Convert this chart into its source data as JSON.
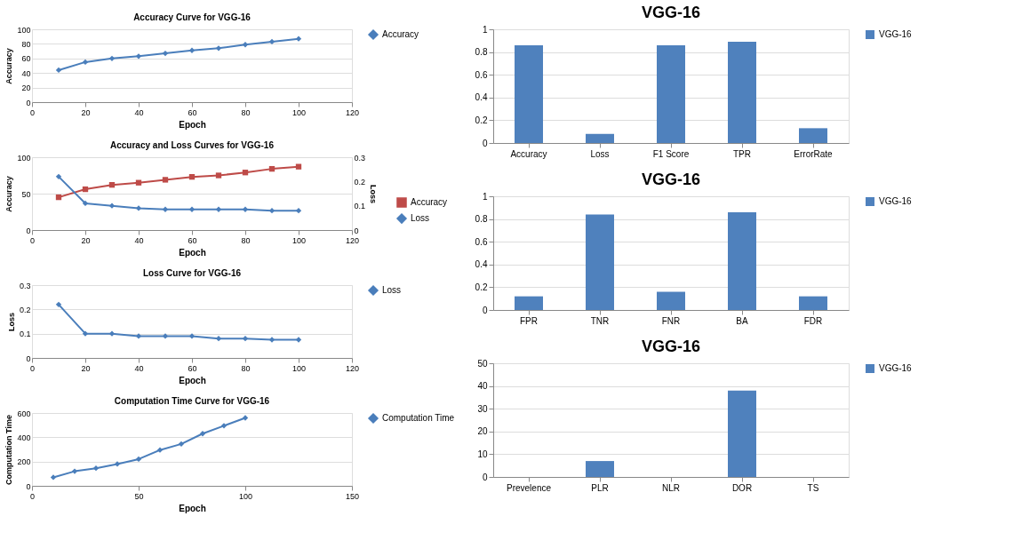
{
  "chart_data": [
    {
      "type": "line",
      "title": "Accuracy Curve for VGG-16",
      "xlabel": "Epoch",
      "ylabel": "Accuracy",
      "x": [
        10,
        20,
        30,
        40,
        50,
        60,
        70,
        80,
        90,
        100
      ],
      "series": [
        {
          "name": "Accuracy",
          "color": "#4a7ebb",
          "marker": "diamond",
          "values": [
            44,
            55,
            60,
            63,
            67,
            71,
            74,
            79,
            83,
            87
          ]
        }
      ],
      "xlim": [
        0,
        120
      ],
      "xticks": [
        0,
        20,
        40,
        60,
        80,
        100,
        120
      ],
      "ylim": [
        0,
        100
      ],
      "yticks": [
        0,
        20,
        40,
        60,
        80,
        100
      ],
      "grid": "y",
      "legend": "right"
    },
    {
      "type": "line",
      "title": "Accuracy and Loss Curves for VGG-16",
      "xlabel": "Epoch",
      "ylabel": "Accuracy",
      "y2label": "Loss",
      "x": [
        10,
        20,
        30,
        40,
        50,
        60,
        70,
        80,
        90,
        100
      ],
      "series": [
        {
          "name": "Accuracy",
          "color": "#be4b48",
          "marker": "square",
          "values": [
            45,
            56,
            62,
            65,
            69,
            73,
            75,
            79,
            84,
            87
          ]
        },
        {
          "name": "Loss",
          "color": "#4a7ebb",
          "marker": "diamond",
          "axis": "y2",
          "values": [
            0.22,
            0.11,
            0.1,
            0.09,
            0.085,
            0.085,
            0.085,
            0.085,
            0.08,
            0.08
          ]
        }
      ],
      "xlim": [
        0,
        120
      ],
      "xticks": [
        0,
        20,
        40,
        60,
        80,
        100,
        120
      ],
      "ylim": [
        0,
        100
      ],
      "yticks": [
        0,
        50,
        100
      ],
      "y2lim": [
        0,
        0.3
      ],
      "y2ticks": [
        0,
        0.1,
        0.2,
        0.3
      ],
      "grid": "y",
      "legend": "bottom right"
    },
    {
      "type": "line",
      "title": "Loss Curve for VGG-16",
      "xlabel": "Epoch",
      "ylabel": "Loss",
      "x": [
        10,
        20,
        30,
        40,
        50,
        60,
        70,
        80,
        90,
        100
      ],
      "series": [
        {
          "name": "Loss",
          "color": "#4a7ebb",
          "marker": "diamond",
          "values": [
            0.22,
            0.1,
            0.1,
            0.09,
            0.09,
            0.09,
            0.08,
            0.08,
            0.075,
            0.075
          ]
        }
      ],
      "xlim": [
        0,
        120
      ],
      "xticks": [
        0,
        20,
        40,
        60,
        80,
        100,
        120
      ],
      "ylim": [
        0,
        0.3
      ],
      "yticks": [
        0,
        0.1,
        0.2,
        0.3
      ],
      "grid": "y",
      "legend": "right"
    },
    {
      "type": "line",
      "title": "Computation Time Curve for VGG-16",
      "xlabel": "Epoch",
      "ylabel": "Computation Time",
      "x": [
        10,
        20,
        30,
        40,
        50,
        60,
        70,
        80,
        90,
        100
      ],
      "series": [
        {
          "name": "Computation Time",
          "color": "#4a7ebb",
          "marker": "diamond",
          "values": [
            70,
            120,
            145,
            180,
            220,
            295,
            345,
            430,
            495,
            560
          ]
        }
      ],
      "xlim": [
        0,
        150
      ],
      "xticks": [
        0,
        50,
        100,
        150
      ],
      "ylim": [
        0,
        600
      ],
      "yticks": [
        0,
        200,
        400,
        600
      ],
      "grid": "y",
      "legend": "right"
    },
    {
      "type": "bar",
      "title": "VGG-16",
      "categories": [
        "Accuracy",
        "Loss",
        "F1 Score",
        "TPR",
        "ErrorRate"
      ],
      "series": [
        {
          "name": "VGG-16",
          "color": "#4f81bd",
          "values": [
            0.86,
            0.08,
            0.86,
            0.89,
            0.13
          ]
        }
      ],
      "ylim": [
        0,
        1
      ],
      "yticks": [
        0,
        0.2,
        0.4,
        0.6,
        0.8,
        1
      ],
      "grid": "y",
      "legend": "right"
    },
    {
      "type": "bar",
      "title": "VGG-16",
      "categories": [
        "FPR",
        "TNR",
        "FNR",
        "BA",
        "FDR"
      ],
      "series": [
        {
          "name": "VGG-16",
          "color": "#4f81bd",
          "values": [
            0.12,
            0.84,
            0.16,
            0.86,
            0.12
          ]
        }
      ],
      "ylim": [
        0,
        1
      ],
      "yticks": [
        0,
        0.2,
        0.4,
        0.6,
        0.8,
        1
      ],
      "grid": "y",
      "legend": "right"
    },
    {
      "type": "bar",
      "title": "VGG-16",
      "categories": [
        "Prevelence",
        "PLR",
        "NLR",
        "DOR",
        "TS"
      ],
      "series": [
        {
          "name": "VGG-16",
          "color": "#4f81bd",
          "values": [
            0,
            7,
            0,
            38,
            0
          ]
        }
      ],
      "ylim": [
        0,
        50
      ],
      "yticks": [
        0,
        10,
        20,
        30,
        40,
        50
      ],
      "grid": "y",
      "legend": "right"
    }
  ]
}
